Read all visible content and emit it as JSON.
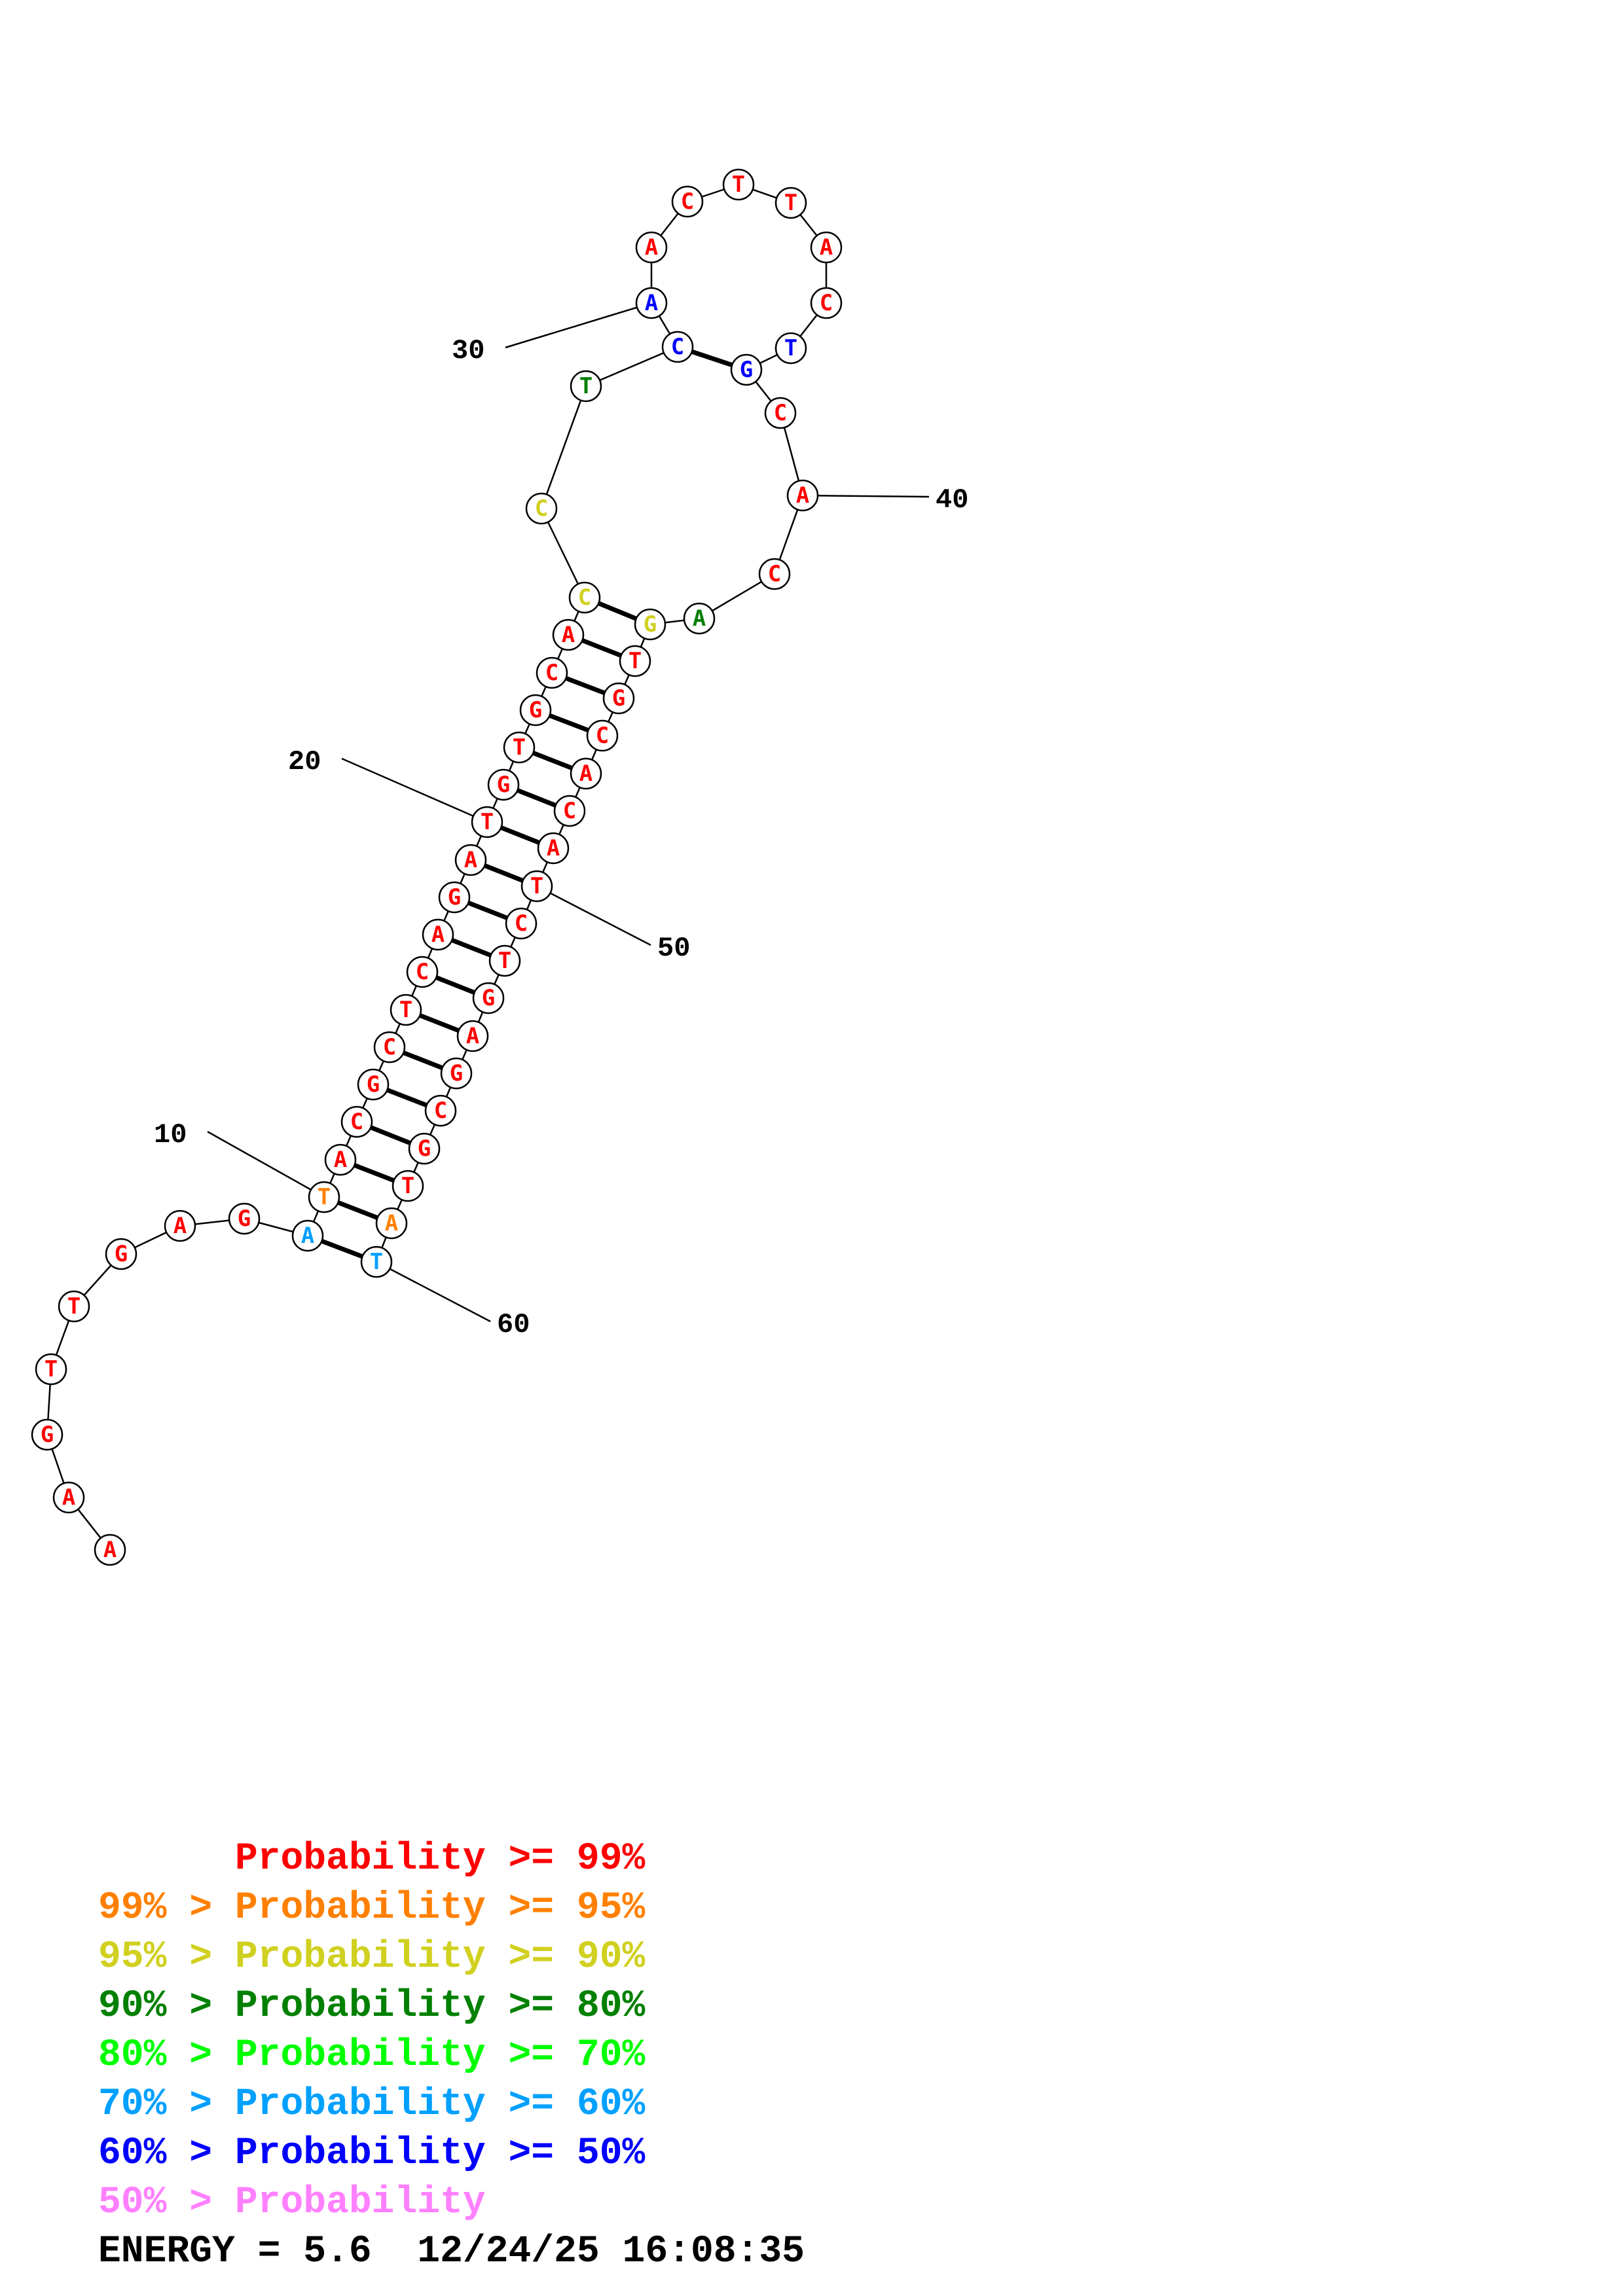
{
  "colors": {
    "p99": "#ff0000",
    "p95": "#ff8000",
    "p90": "#d0d020",
    "p80": "#008000",
    "p70": "#00ff00",
    "p60": "#00a0ff",
    "p50": "#0000ff",
    "plow": "#ff80ff"
  },
  "structure": {
    "nucleotides": [
      {
        "base": "A",
        "color": "p99"
      },
      {
        "base": "A",
        "color": "p99"
      },
      {
        "base": "G",
        "color": "p99"
      },
      {
        "base": "T",
        "color": "p99"
      },
      {
        "base": "T",
        "color": "p99"
      },
      {
        "base": "G",
        "color": "p99"
      },
      {
        "base": "A",
        "color": "p99"
      },
      {
        "base": "G",
        "color": "p99"
      },
      {
        "base": "A",
        "color": "p60"
      },
      {
        "base": "T",
        "color": "p95"
      },
      {
        "base": "A",
        "color": "p99"
      },
      {
        "base": "C",
        "color": "p99"
      },
      {
        "base": "G",
        "color": "p99"
      },
      {
        "base": "C",
        "color": "p99"
      },
      {
        "base": "T",
        "color": "p99"
      },
      {
        "base": "C",
        "color": "p99"
      },
      {
        "base": "A",
        "color": "p99"
      },
      {
        "base": "G",
        "color": "p99"
      },
      {
        "base": "A",
        "color": "p99"
      },
      {
        "base": "T",
        "color": "p99"
      },
      {
        "base": "G",
        "color": "p99"
      },
      {
        "base": "T",
        "color": "p99"
      },
      {
        "base": "G",
        "color": "p99"
      },
      {
        "base": "C",
        "color": "p99"
      },
      {
        "base": "A",
        "color": "p99"
      },
      {
        "base": "C",
        "color": "p90"
      },
      {
        "base": "C",
        "color": "p90"
      },
      {
        "base": "T",
        "color": "p80"
      },
      {
        "base": "C",
        "color": "p50"
      },
      {
        "base": "A",
        "color": "p50"
      },
      {
        "base": "A",
        "color": "p99"
      },
      {
        "base": "C",
        "color": "p99"
      },
      {
        "base": "T",
        "color": "p99"
      },
      {
        "base": "T",
        "color": "p99"
      },
      {
        "base": "A",
        "color": "p99"
      },
      {
        "base": "C",
        "color": "p99"
      },
      {
        "base": "T",
        "color": "p50"
      },
      {
        "base": "G",
        "color": "p50"
      },
      {
        "base": "C",
        "color": "p99"
      },
      {
        "base": "A",
        "color": "p99"
      },
      {
        "base": "C",
        "color": "p99"
      },
      {
        "base": "A",
        "color": "p80"
      },
      {
        "base": "G",
        "color": "p90"
      },
      {
        "base": "T",
        "color": "p99"
      },
      {
        "base": "G",
        "color": "p99"
      },
      {
        "base": "C",
        "color": "p99"
      },
      {
        "base": "A",
        "color": "p99"
      },
      {
        "base": "C",
        "color": "p99"
      },
      {
        "base": "A",
        "color": "p99"
      },
      {
        "base": "T",
        "color": "p99"
      },
      {
        "base": "C",
        "color": "p99"
      },
      {
        "base": "T",
        "color": "p99"
      },
      {
        "base": "G",
        "color": "p99"
      },
      {
        "base": "A",
        "color": "p99"
      },
      {
        "base": "G",
        "color": "p99"
      },
      {
        "base": "C",
        "color": "p99"
      },
      {
        "base": "G",
        "color": "p99"
      },
      {
        "base": "T",
        "color": "p99"
      },
      {
        "base": "A",
        "color": "p95"
      },
      {
        "base": "T",
        "color": "p60"
      }
    ],
    "pairs": [
      [
        9,
        60
      ],
      [
        10,
        59
      ],
      [
        11,
        58
      ],
      [
        12,
        57
      ],
      [
        13,
        56
      ],
      [
        14,
        55
      ],
      [
        15,
        54
      ],
      [
        16,
        53
      ],
      [
        17,
        52
      ],
      [
        18,
        51
      ],
      [
        19,
        50
      ],
      [
        20,
        49
      ],
      [
        21,
        48
      ],
      [
        22,
        47
      ],
      [
        23,
        46
      ],
      [
        24,
        45
      ],
      [
        25,
        44
      ],
      [
        26,
        43
      ],
      [
        29,
        38
      ]
    ],
    "numbered_positions": [
      {
        "index": 10,
        "label": "10"
      },
      {
        "index": 20,
        "label": "20"
      },
      {
        "index": 30,
        "label": "30"
      },
      {
        "index": 40,
        "label": "40"
      },
      {
        "index": 50,
        "label": "50"
      },
      {
        "index": 60,
        "label": "60"
      }
    ]
  },
  "legend": [
    {
      "prefix": "    ",
      "text": "Probability >= 99%",
      "color": "p99"
    },
    {
      "prefix": "99% > ",
      "text": "Probability >= 95%",
      "color": "p95"
    },
    {
      "prefix": "95% > ",
      "text": "Probability >= 90%",
      "color": "p90"
    },
    {
      "prefix": "90% > ",
      "text": "Probability >= 80%",
      "color": "p80"
    },
    {
      "prefix": "80% > ",
      "text": "Probability >= 70%",
      "color": "p70"
    },
    {
      "prefix": "70% > ",
      "text": "Probability >= 60%",
      "color": "p60"
    },
    {
      "prefix": "60% > ",
      "text": "Probability >= 50%",
      "color": "p50"
    },
    {
      "prefix": "50% > ",
      "text": "Probability",
      "color": "plow"
    }
  ],
  "footer": {
    "energy_text": "ENERGY = 5.6  12/24/25 16:08:35"
  }
}
